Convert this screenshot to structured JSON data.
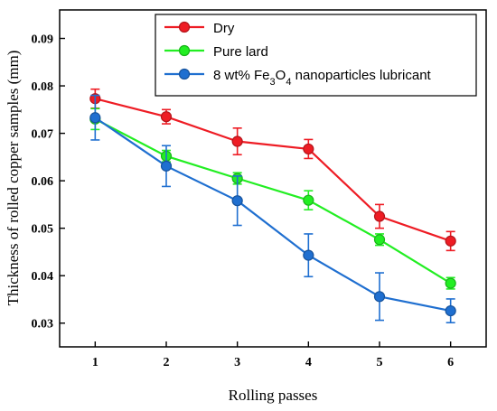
{
  "chart_data": {
    "type": "line",
    "title": "",
    "xlabel": "Rolling passes",
    "ylabel": "Thickness of rolled copper samples (mm)",
    "x": [
      1,
      2,
      3,
      4,
      5,
      6
    ],
    "xlim": [
      0.5,
      6.5
    ],
    "ylim": [
      0.025,
      0.096
    ],
    "y_ticks": [
      0.03,
      0.04,
      0.05,
      0.06,
      0.07,
      0.08,
      0.09
    ],
    "y_tick_labels": [
      "0.03",
      "0.04",
      "0.05",
      "0.06",
      "0.07",
      "0.08",
      "0.09"
    ],
    "x_tick_labels": [
      "1",
      "2",
      "3",
      "4",
      "5",
      "6"
    ],
    "grid": false,
    "legend_position": "top-right",
    "series": [
      {
        "name": "Dry",
        "color": "#ee1c24",
        "values": [
          0.0773,
          0.0735,
          0.0683,
          0.0667,
          0.0525,
          0.0473
        ],
        "errors": [
          0.002,
          0.0015,
          0.0028,
          0.002,
          0.0025,
          0.002
        ]
      },
      {
        "name": "Pure lard",
        "color": "#22ee22",
        "values": [
          0.073,
          0.0652,
          0.0605,
          0.0559,
          0.0476,
          0.0384
        ],
        "errors": [
          0.0022,
          0.0012,
          0.0012,
          0.002,
          0.0012,
          0.0012
        ]
      },
      {
        "name_prefix": "8 wt% Fe",
        "name_sub1": "3",
        "name_mid": "O",
        "name_sub2": "4",
        "name_suffix": " nanoparticles lubricant",
        "color": "#1f6fd0",
        "values": [
          0.0733,
          0.0631,
          0.0558,
          0.0443,
          0.0356,
          0.0326
        ],
        "errors": [
          0.0047,
          0.0043,
          0.0052,
          0.0045,
          0.005,
          0.0025
        ]
      }
    ]
  }
}
